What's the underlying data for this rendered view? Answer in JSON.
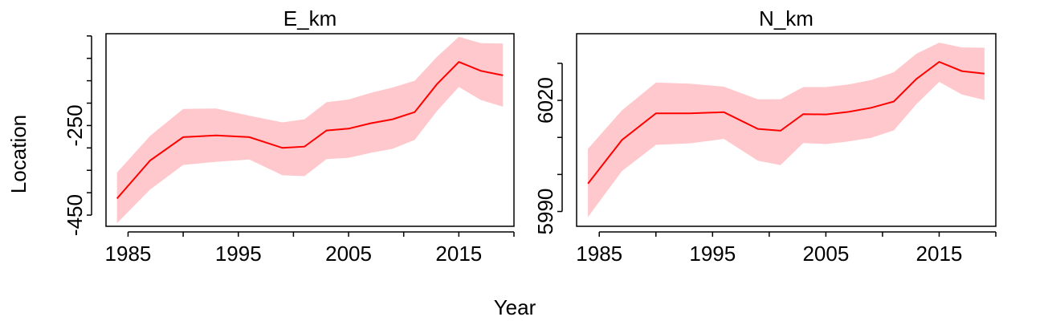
{
  "figure": {
    "xlabel": "Year",
    "ylabel": "Location",
    "colors": {
      "line": "#ff0000",
      "band": "#ffc8cc",
      "frame": "#000000"
    }
  },
  "chart_data": [
    {
      "type": "line",
      "title": "E_km",
      "xlim": [
        1983,
        2020
      ],
      "ylim": [
        -475,
        -45
      ],
      "xticks": [
        1985,
        1990,
        1995,
        2000,
        2005,
        2010,
        2015,
        2020
      ],
      "xtick_labels": [
        "1985",
        "1995",
        "2005",
        "2015"
      ],
      "xtick_label_values": [
        1985,
        1995,
        2005,
        2015
      ],
      "yticks": [
        -450,
        -400,
        -350,
        -300,
        -250,
        -200,
        -150,
        -100,
        -50
      ],
      "ytick_labels": [
        "-450",
        "-250"
      ],
      "ytick_label_values": [
        -450,
        -250
      ],
      "series": [
        {
          "x": [
            1984,
            1987,
            1990,
            1993,
            1996,
            1999,
            2001,
            2003,
            2005,
            2007,
            2009,
            2011,
            2013,
            2015,
            2017,
            2019
          ],
          "y": [
            -413,
            -328,
            -276,
            -272,
            -276,
            -300,
            -297,
            -261,
            -257,
            -245,
            -236,
            -220,
            -158,
            -108,
            -128,
            -138
          ],
          "lower": [
            -468,
            -393,
            -338,
            -331,
            -326,
            -361,
            -363,
            -325,
            -322,
            -311,
            -302,
            -282,
            -218,
            -164,
            -193,
            -208
          ],
          "upper": [
            -355,
            -273,
            -213,
            -212,
            -228,
            -243,
            -236,
            -198,
            -192,
            -177,
            -165,
            -150,
            -97,
            -52,
            -66,
            -67
          ]
        }
      ]
    },
    {
      "type": "line",
      "title": "N_km",
      "xlim": [
        1983,
        2020
      ],
      "ylim": [
        5986,
        6038
      ],
      "xticks": [
        1985,
        1990,
        1995,
        2000,
        2005,
        2010,
        2015,
        2020
      ],
      "xtick_labels": [
        "1985",
        "1995",
        "2005",
        "2015"
      ],
      "xtick_label_values": [
        1985,
        1995,
        2005,
        2015
      ],
      "yticks": [
        5990,
        6000,
        6010,
        6020,
        6030
      ],
      "ytick_labels": [
        "5990",
        "6020"
      ],
      "ytick_label_values": [
        5990,
        6020
      ],
      "series": [
        {
          "x": [
            1984,
            1987,
            1990,
            1993,
            1996,
            1999,
            2001,
            2003,
            2005,
            2007,
            2009,
            2011,
            2013,
            2015,
            2017,
            2019
          ],
          "y": [
            5997.5,
            6009.3,
            6016.5,
            6016.5,
            6016.8,
            6012.3,
            6011.8,
            6016.3,
            6016.2,
            6016.9,
            6018.0,
            6019.7,
            6025.8,
            6030.4,
            6027.9,
            6027.2
          ],
          "lower": [
            5988.5,
            6000.9,
            6008.0,
            6008.4,
            6009.6,
            6003.7,
            6002.5,
            6008.5,
            6008.2,
            6008.9,
            6009.9,
            6011.9,
            6019.0,
            6025.0,
            6021.6,
            6020.1
          ],
          "upper": [
            6006.9,
            6017.3,
            6024.8,
            6024.5,
            6023.7,
            6020.3,
            6020.3,
            6023.6,
            6023.6,
            6024.3,
            6025.5,
            6027.6,
            6032.6,
            6035.6,
            6034.3,
            6034.2
          ]
        }
      ]
    }
  ]
}
